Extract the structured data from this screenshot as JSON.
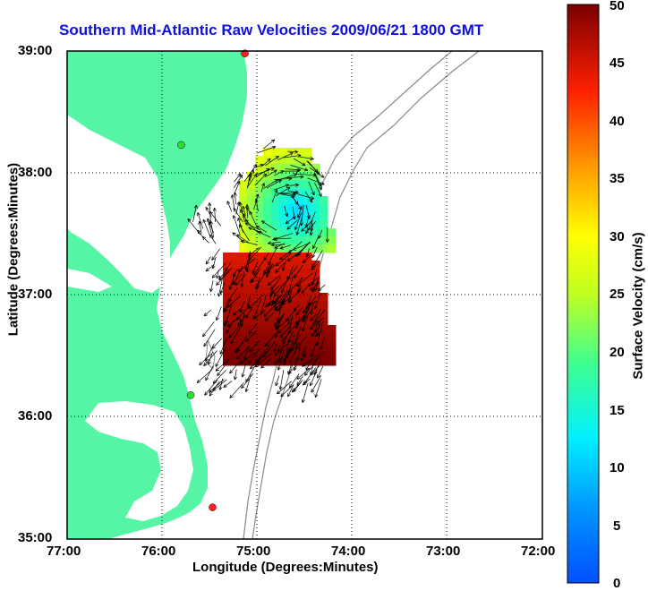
{
  "map": {
    "title": "Southern Mid-Atlantic Raw Velocities 2009/06/21 1800 GMT",
    "xlabel": "Longitude (Degrees:Minutes)",
    "ylabel": "Latitude (Degrees:Minutes)",
    "colorbar_label": "Surface Velocity (cm/s)",
    "lon_ticks": [
      "77:00",
      "76:00",
      "75:00",
      "74:00",
      "73:00",
      "72:00"
    ],
    "lat_ticks": [
      "39:00",
      "38:00",
      "37:00",
      "36:00",
      "35:00"
    ],
    "colorbar_ticks": [
      "50",
      "45",
      "40",
      "35",
      "30",
      "25",
      "20",
      "15",
      "10",
      "5",
      "0"
    ],
    "lon_range": [
      -77,
      -72
    ],
    "lat_range": [
      35,
      39
    ],
    "velocity_range": [
      0,
      50
    ],
    "land_color": "#55f5a5",
    "colormap": "jet",
    "grid": "dotted",
    "stations": [
      {
        "lon": -75.13,
        "lat": 38.98
      },
      {
        "lon": -75.8,
        "lat": 38.23
      },
      {
        "lon": -75.7,
        "lat": 36.18
      },
      {
        "lon": -75.47,
        "lat": 35.26
      }
    ]
  }
}
